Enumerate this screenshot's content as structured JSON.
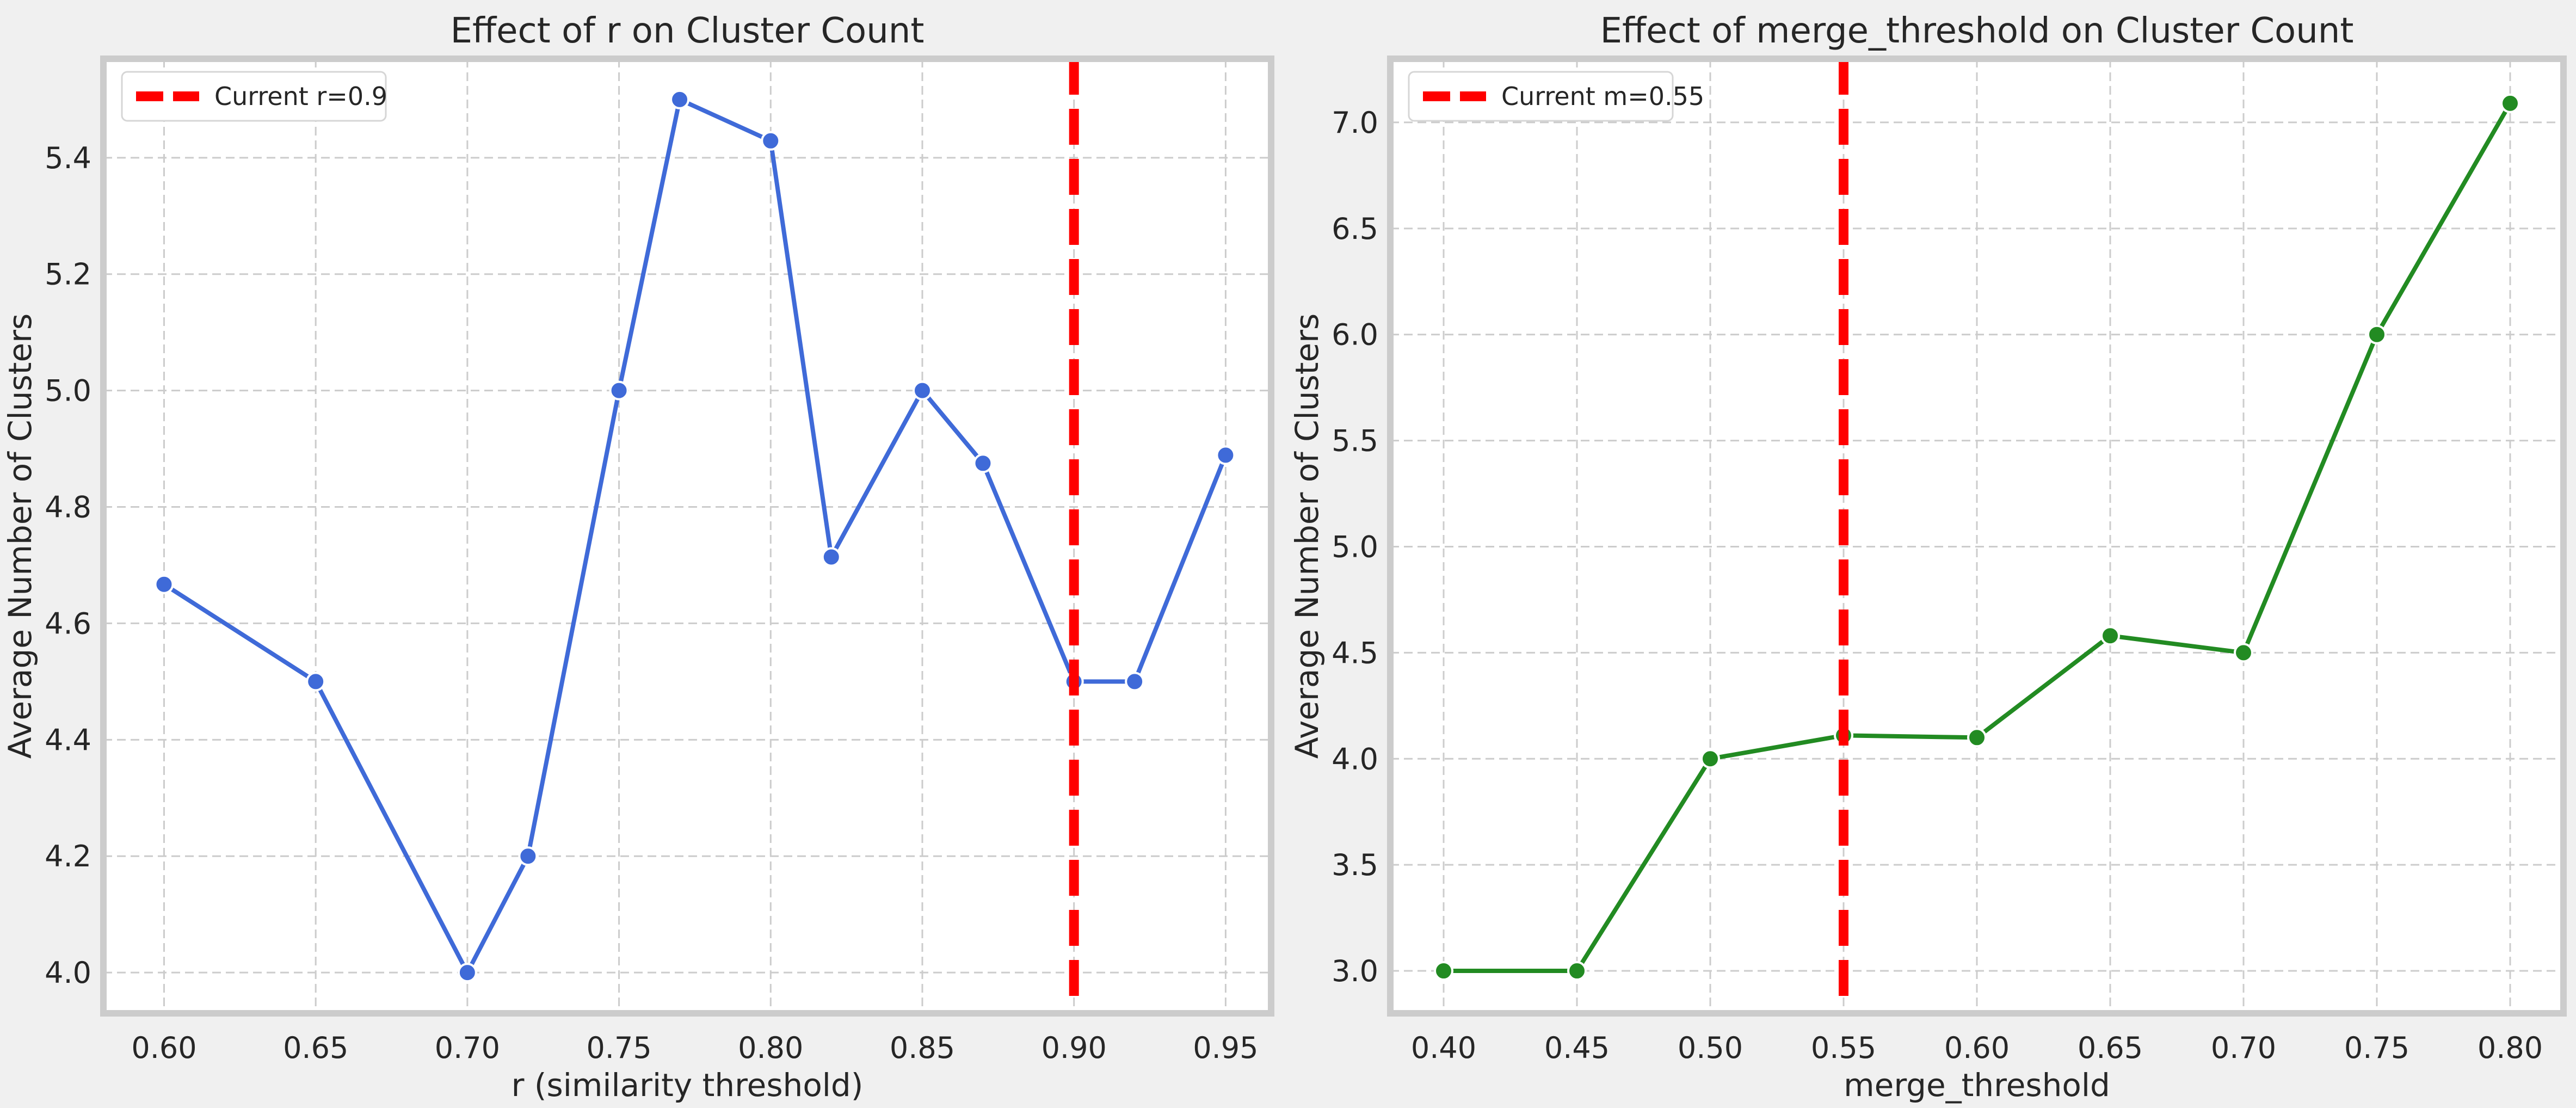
{
  "figure": {
    "background": "#f0f0f0"
  },
  "chart_data": [
    {
      "type": "line",
      "title": "Effect of r on Cluster Count",
      "xlabel": "r (similarity threshold)",
      "ylabel": "Average Number of Clusters",
      "xlim": [
        0.58,
        0.965
      ],
      "ylim": [
        3.93,
        5.57
      ],
      "xticks": [
        "0.60",
        "0.65",
        "0.70",
        "0.75",
        "0.80",
        "0.85",
        "0.90",
        "0.95"
      ],
      "yticks": [
        "4.0",
        "4.2",
        "4.4",
        "4.6",
        "4.8",
        "5.0",
        "5.2",
        "5.4"
      ],
      "grid": true,
      "legend_position": "top-left",
      "series": [
        {
          "color": "#3f6ad8",
          "x": [
            0.6,
            0.65,
            0.7,
            0.72,
            0.75,
            0.77,
            0.8,
            0.82,
            0.85,
            0.87,
            0.9,
            0.92,
            0.95
          ],
          "values": [
            4.667,
            4.5,
            4.0,
            4.2,
            5.0,
            5.5,
            5.429,
            4.714,
            5.0,
            4.875,
            4.5,
            4.5,
            4.889
          ]
        }
      ],
      "reference_line": {
        "orientation": "vertical",
        "x": 0.9,
        "color": "#ff0000",
        "style": "dashed",
        "label": "Current r=0.9"
      }
    },
    {
      "type": "line",
      "title": "Effect of merge_threshold on Cluster Count",
      "xlabel": "merge_threshold",
      "ylabel": "Average Number of Clusters",
      "xlim": [
        0.38,
        0.82
      ],
      "ylim": [
        2.8,
        7.3
      ],
      "xticks": [
        "0.40",
        "0.45",
        "0.50",
        "0.55",
        "0.60",
        "0.65",
        "0.70",
        "0.75",
        "0.80"
      ],
      "yticks": [
        "3.0",
        "3.5",
        "4.0",
        "4.5",
        "5.0",
        "5.5",
        "6.0",
        "6.5",
        "7.0"
      ],
      "grid": true,
      "legend_position": "top-left",
      "series": [
        {
          "color": "#228b22",
          "x": [
            0.4,
            0.45,
            0.5,
            0.55,
            0.6,
            0.65,
            0.7,
            0.75,
            0.8
          ],
          "values": [
            3.0,
            3.0,
            4.0,
            4.11,
            4.1,
            4.58,
            4.5,
            6.0,
            7.09
          ]
        }
      ],
      "reference_line": {
        "orientation": "vertical",
        "x": 0.55,
        "color": "#ff0000",
        "style": "dashed",
        "label": "Current m=0.55"
      }
    }
  ]
}
